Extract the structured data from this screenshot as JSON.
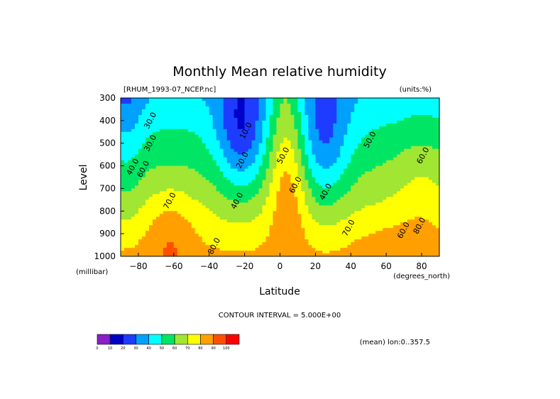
{
  "chart_data": {
    "type": "contour",
    "title": "Monthly Mean relative humidity",
    "source_label": "[RHUM_1993-07_NCEP.nc]",
    "units_label": "(units:%)",
    "xlabel": "Latitude",
    "ylabel": "Level",
    "x_units": "(degrees_north)",
    "y_units": "(millibar)",
    "xlim": [
      -90,
      90
    ],
    "ylim": [
      1000,
      300
    ],
    "x_ticks": [
      -80,
      -60,
      -40,
      -20,
      0,
      20,
      40,
      60,
      80
    ],
    "y_ticks": [
      300,
      400,
      500,
      600,
      700,
      800,
      900,
      1000
    ],
    "contour_interval_text": "CONTOUR INTERVAL = 5.000E+00",
    "mean_note": "(mean) lon:0..357.5",
    "color_levels": [
      0,
      10,
      20,
      30,
      40,
      50,
      60,
      70,
      80,
      90,
      100
    ],
    "colors": [
      "#8c1ec8",
      "#0000c8",
      "#1e3cff",
      "#00a0ff",
      "#00ffff",
      "#00e664",
      "#a0e632",
      "#ffff00",
      "#ffa000",
      "#ff5000",
      "#ff0000"
    ],
    "contour_labels": [
      {
        "text": "30.0",
        "lat": -72,
        "lev": 405
      },
      {
        "text": "30.0",
        "lat": -72,
        "lev": 505
      },
      {
        "text": "40.0",
        "lat": -82,
        "lev": 610
      },
      {
        "text": "60.0",
        "lat": -76,
        "lev": 620
      },
      {
        "text": "70.0",
        "lat": -61,
        "lev": 760
      },
      {
        "text": "80.0",
        "lat": -36,
        "lev": 960
      },
      {
        "text": "10.0",
        "lat": -18,
        "lev": 450
      },
      {
        "text": "20.0",
        "lat": -20,
        "lev": 580
      },
      {
        "text": "40.0",
        "lat": -23,
        "lev": 760
      },
      {
        "text": "50.0",
        "lat": 3,
        "lev": 560
      },
      {
        "text": "60.0",
        "lat": 10,
        "lev": 690
      },
      {
        "text": "40.0",
        "lat": 27,
        "lev": 720
      },
      {
        "text": "50.0",
        "lat": 52,
        "lev": 490
      },
      {
        "text": "70.0",
        "lat": 40,
        "lev": 880
      },
      {
        "text": "60.0",
        "lat": 82,
        "lev": 560
      },
      {
        "text": "80.0",
        "lat": 80,
        "lev": 870
      },
      {
        "text": "60.0",
        "lat": 71,
        "lev": 890
      }
    ],
    "grid": false
  }
}
